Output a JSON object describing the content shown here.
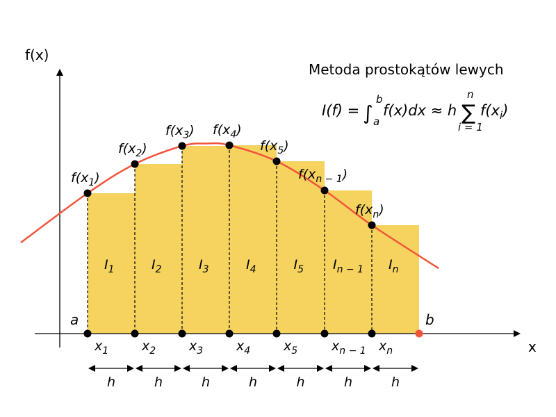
{
  "title": "Metoda prostokątów lewych",
  "formula": {
    "lhs": "I(f) = ",
    "integral": "∫",
    "upper": "b",
    "lower": "a",
    "integrand": "f(x)dx ≈ h",
    "sum": "∑",
    "sum_upper": "n",
    "sum_lower": "i = 1",
    "sum_term": "f(x",
    "sum_index": "i",
    "sum_close": ")"
  },
  "axes": {
    "y_label": "f(x)",
    "x_label": "x",
    "a_label": "a",
    "b_label": "b"
  },
  "nodes": [
    {
      "x": "x",
      "sub": "1",
      "f": "f(x",
      "I": "I",
      "Isub": "1"
    },
    {
      "x": "x",
      "sub": "2",
      "f": "f(x",
      "I": "I",
      "Isub": "2"
    },
    {
      "x": "x",
      "sub": "3",
      "f": "f(x",
      "I": "I",
      "Isub": "3"
    },
    {
      "x": "x",
      "sub": "4",
      "f": "f(x",
      "I": "I",
      "Isub": "4"
    },
    {
      "x": "x",
      "sub": "5",
      "f": "f(x",
      "I": "I",
      "Isub": "5"
    },
    {
      "x": "x",
      "sub": "n − 1",
      "f": "f(x",
      "I": "I",
      "Isub": "n − 1"
    },
    {
      "x": "x",
      "sub": "n",
      "f": "f(x",
      "I": "I",
      "Isub": "n"
    }
  ],
  "step_label": "h",
  "colors": {
    "curve": "#f0553a",
    "fill": "#f5d35e",
    "point": "#000000",
    "b_point": "#f0553a"
  }
}
